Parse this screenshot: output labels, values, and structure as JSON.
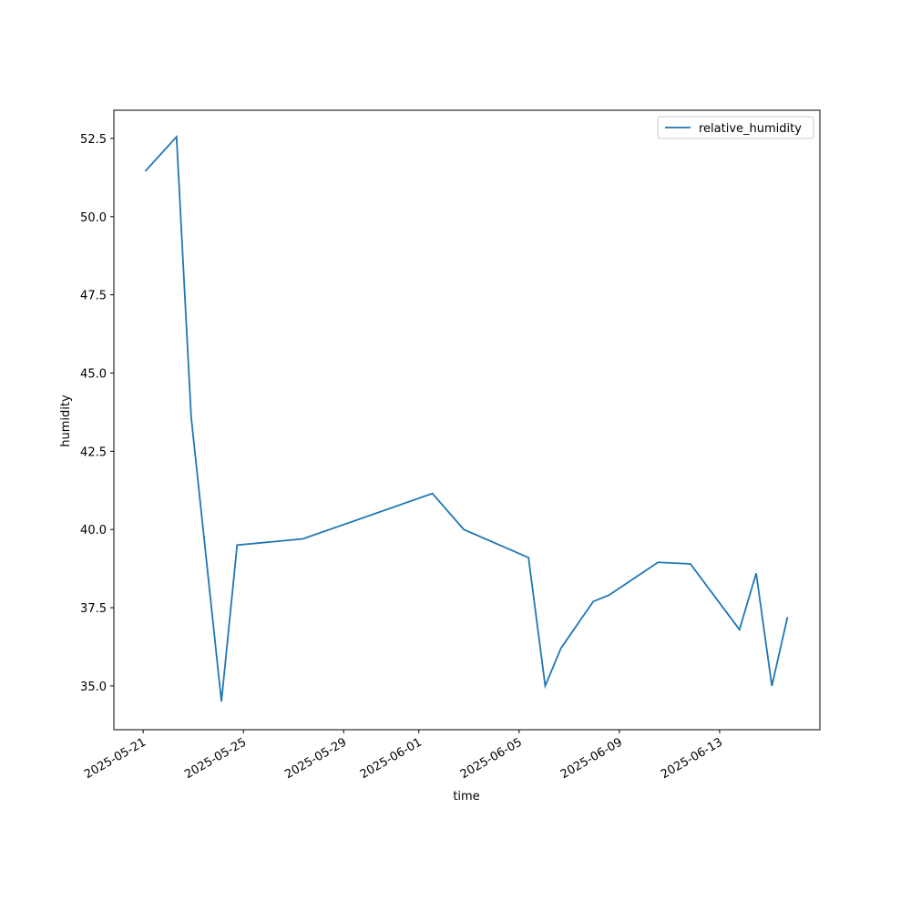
{
  "chart_data": {
    "type": "line",
    "x_label": "time",
    "y_label": "humidity",
    "x": [
      "2025-05-21T02:00",
      "2025-05-22T08:00",
      "2025-05-22T22:00",
      "2025-05-24T03:00",
      "2025-05-24T18:00",
      "2025-05-27T09:00",
      "2025-06-01T13:00",
      "2025-06-02T19:00",
      "2025-06-05T09:00",
      "2025-06-06T01:00",
      "2025-06-06T16:00",
      "2025-06-07T23:00",
      "2025-06-08T14:00",
      "2025-06-10T13:00",
      "2025-06-11T20:00",
      "2025-06-13T19:00",
      "2025-06-14T11:00",
      "2025-06-15T02:00",
      "2025-06-15T17:00"
    ],
    "series": [
      {
        "name": "relative_humidity",
        "color": "#1f77b4",
        "values": [
          51.45,
          52.55,
          43.6,
          34.5,
          39.5,
          39.7,
          41.15,
          40.0,
          39.1,
          35.0,
          36.2,
          37.7,
          37.9,
          38.95,
          38.9,
          36.8,
          38.6,
          35.0,
          37.2
        ]
      }
    ],
    "xlim": [
      "2025-05-19T20:00",
      "2025-06-17T00:00"
    ],
    "xticks": [
      "2025-05-21",
      "2025-05-25",
      "2025-05-29",
      "2025-06-01",
      "2025-06-05",
      "2025-06-09",
      "2025-06-13"
    ],
    "ylim": [
      33.6,
      53.4
    ],
    "yticks": [
      {
        "value": 35,
        "label": "35.0"
      },
      {
        "value": 37.5,
        "label": "37.5"
      },
      {
        "value": 40,
        "label": "40.0"
      },
      {
        "value": 42.5,
        "label": "42.5"
      },
      {
        "value": 45,
        "label": "45.0"
      },
      {
        "value": 47.5,
        "label": "47.5"
      },
      {
        "value": 50,
        "label": "50.0"
      },
      {
        "value": 52.5,
        "label": "52.5"
      }
    ],
    "legend": "upper right",
    "grid": false
  }
}
